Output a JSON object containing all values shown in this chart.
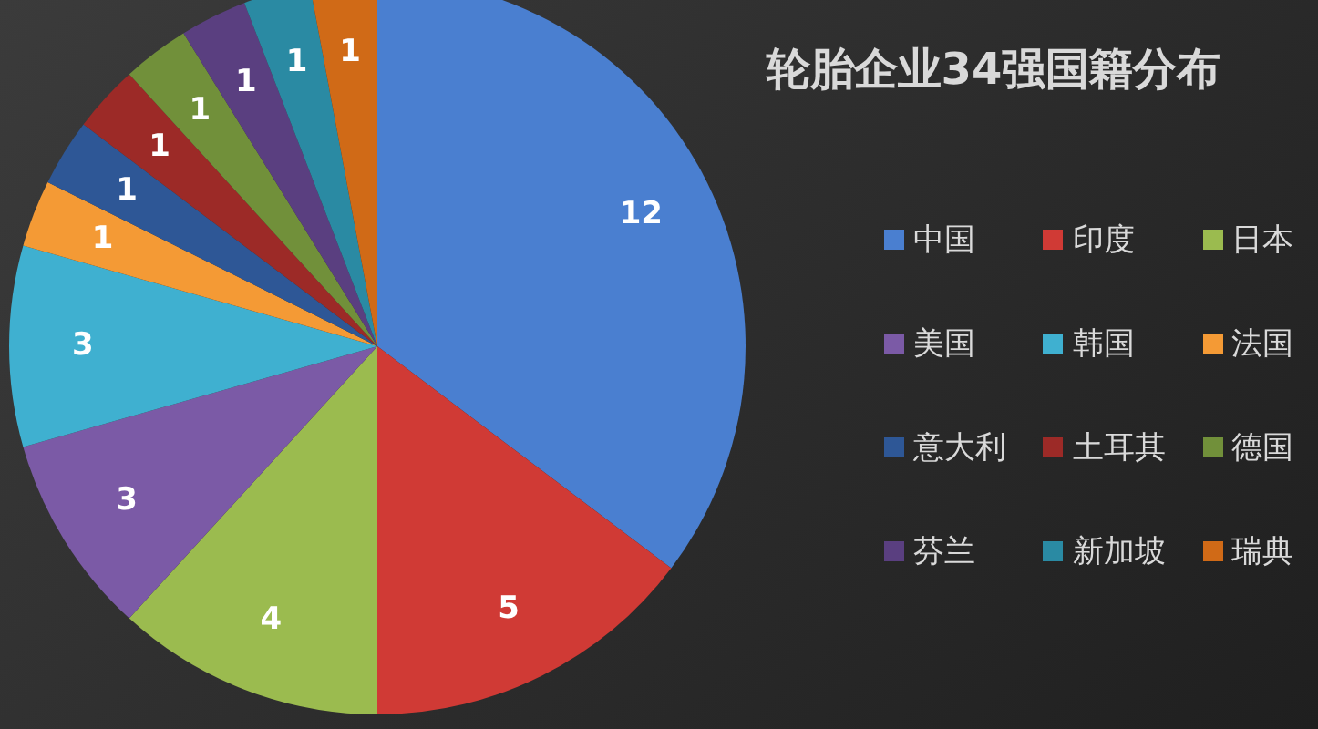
{
  "chart_data": {
    "type": "pie",
    "title": "轮胎企业34强国籍分布",
    "categories": [
      "中国",
      "印度",
      "日本",
      "美国",
      "韩国",
      "法国",
      "意大利",
      "土耳其",
      "德国",
      "芬兰",
      "新加坡",
      "瑞典"
    ],
    "values": [
      12,
      5,
      4,
      3,
      3,
      1,
      1,
      1,
      1,
      1,
      1,
      1
    ],
    "colors": [
      "#4a7fd0",
      "#d03a35",
      "#9bbb4f",
      "#7b5aa6",
      "#3fb0d0",
      "#f49a35",
      "#2e5796",
      "#9c2a27",
      "#71903a",
      "#5a3f80",
      "#2a8aa3",
      "#d06a17"
    ],
    "data_labels": true,
    "legend": "right"
  }
}
